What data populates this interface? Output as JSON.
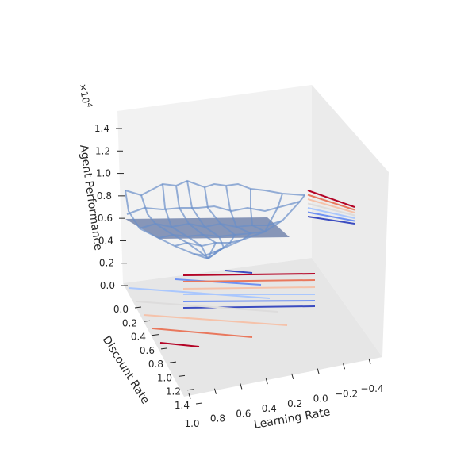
{
  "chart_data": {
    "type": "surface3d",
    "xlabel": "Learning Rate",
    "ylabel": "Discount Rate",
    "zlabel": "Agent Performance",
    "z_offset_label": "×10",
    "z_offset_exponent": "4",
    "x_ticks": [
      "1.0",
      "0.8",
      "0.6",
      "0.4",
      "0.2",
      "0.0",
      "−0.2",
      "−0.4"
    ],
    "y_ticks": [
      "0.0",
      "0.2",
      "0.4",
      "0.6",
      "0.8",
      "1.0",
      "1.2",
      "1.4"
    ],
    "z_ticks": [
      "0.0",
      "0.2",
      "0.4",
      "0.6",
      "0.8",
      "1.0",
      "1.2",
      "1.4"
    ],
    "xlim": [
      -0.5,
      1.0
    ],
    "ylim": [
      0.0,
      1.5
    ],
    "zlim": [
      0.0,
      1.5
    ],
    "grid": false,
    "wireframe_color": "#6a8fc9",
    "plane_color": "#5a6fa0",
    "contour_colors": [
      "#b40426",
      "#e9785d",
      "#f5c2aa",
      "#dddcdc",
      "#aac7fd",
      "#6f92f3",
      "#3b4cc0"
    ]
  }
}
